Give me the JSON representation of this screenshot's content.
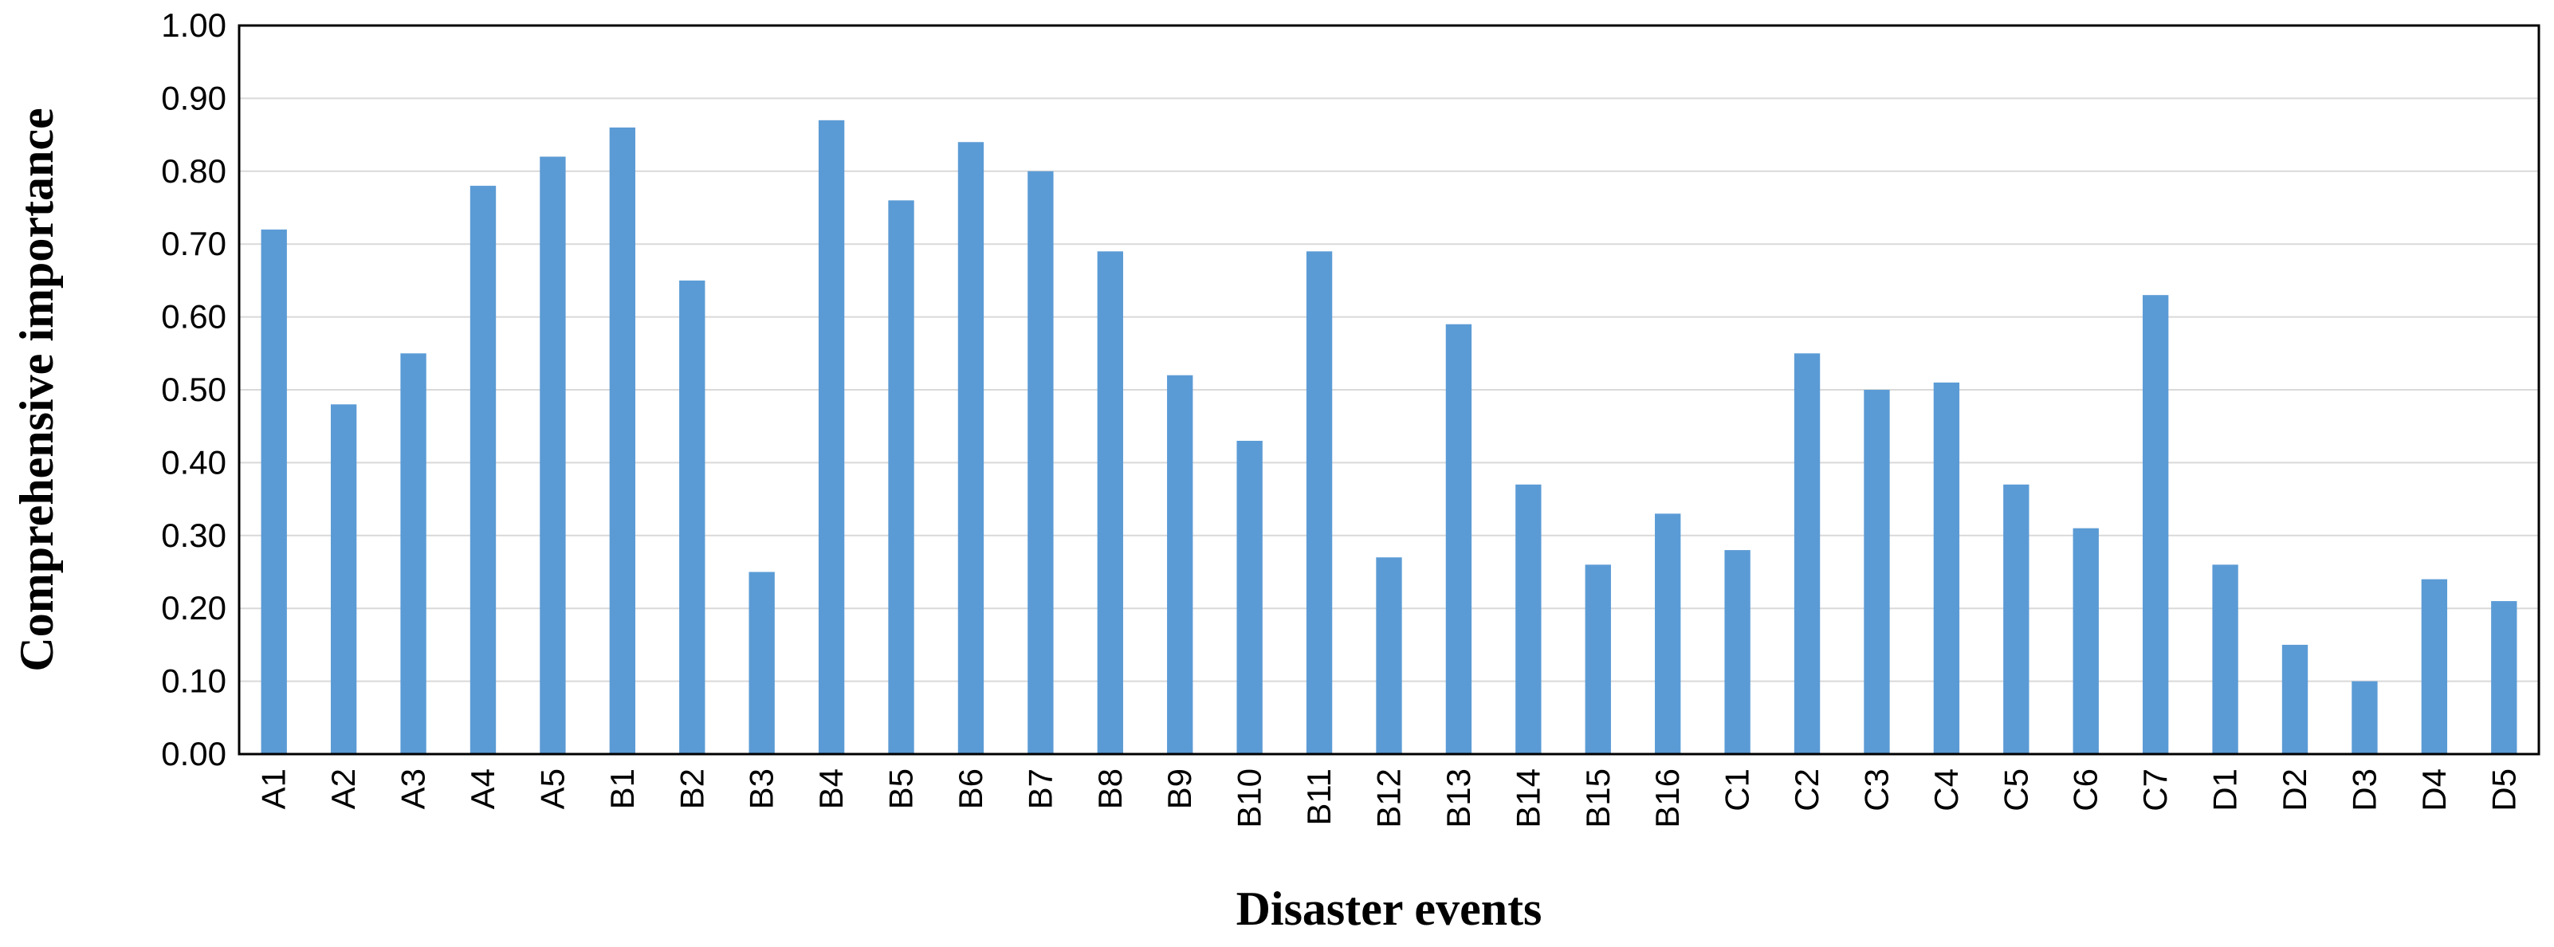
{
  "chart_data": {
    "type": "bar",
    "title": "",
    "xlabel": "Disaster events",
    "ylabel": "Comprehensive importance",
    "ylim": [
      0,
      1.0
    ],
    "yticks": [
      "0.00",
      "0.10",
      "0.20",
      "0.30",
      "0.40",
      "0.50",
      "0.60",
      "0.70",
      "0.80",
      "0.90",
      "1.00"
    ],
    "grid": true,
    "legend": "none",
    "bar_color": "#5B9BD5",
    "categories": [
      "A1",
      "A2",
      "A3",
      "A4",
      "A5",
      "B1",
      "B2",
      "B3",
      "B4",
      "B5",
      "B6",
      "B7",
      "B8",
      "B9",
      "B10",
      "B11",
      "B12",
      "B13",
      "B14",
      "B15",
      "B16",
      "C1",
      "C2",
      "C3",
      "C4",
      "C5",
      "C6",
      "C7",
      "D1",
      "D2",
      "D3",
      "D4",
      "D5"
    ],
    "values": [
      0.72,
      0.48,
      0.55,
      0.78,
      0.82,
      0.86,
      0.65,
      0.25,
      0.87,
      0.76,
      0.84,
      0.8,
      0.69,
      0.52,
      0.43,
      0.69,
      0.27,
      0.59,
      0.37,
      0.26,
      0.33,
      0.28,
      0.55,
      0.5,
      0.51,
      0.37,
      0.31,
      0.63,
      0.26,
      0.15,
      0.1,
      0.24,
      0.21
    ]
  }
}
